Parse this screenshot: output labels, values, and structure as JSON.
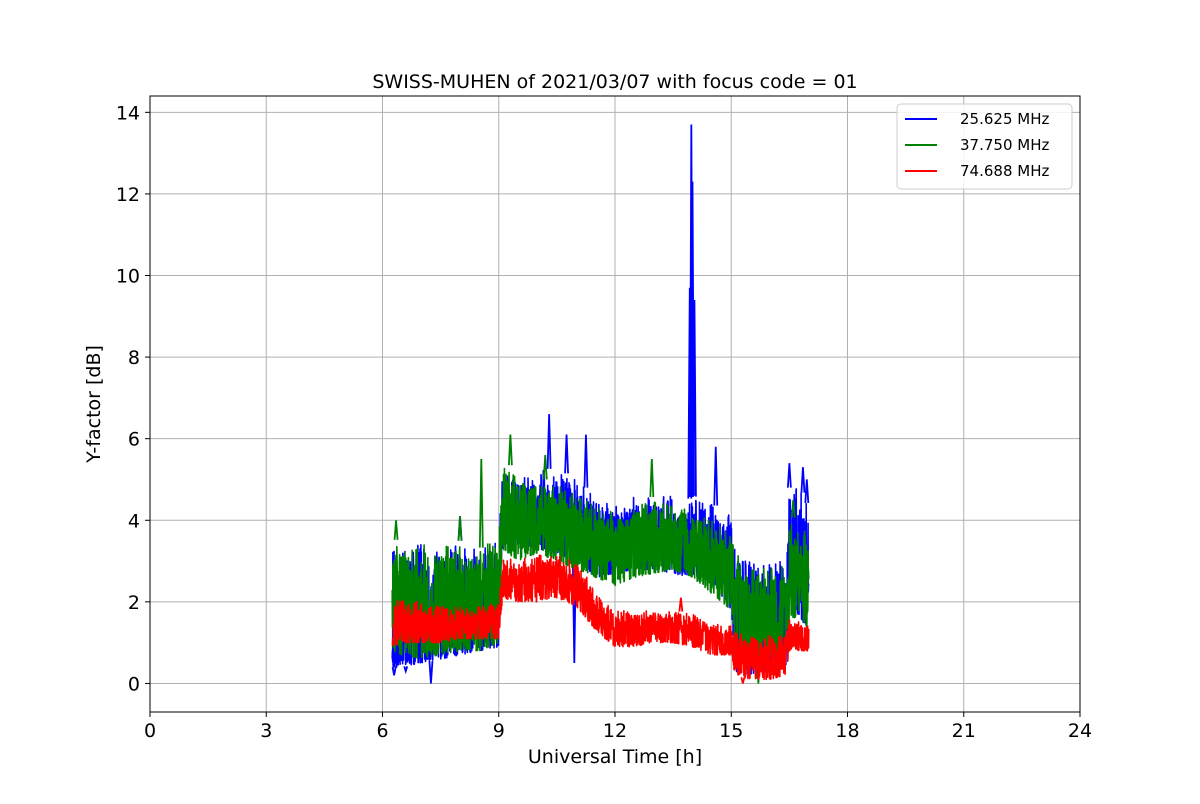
{
  "chart_data": {
    "type": "line",
    "title": "SWISS-MUHEN of 2021/03/07 with focus code = 01",
    "xlabel": "Universal Time [h]",
    "ylabel": "Y-factor [dB]",
    "xlim": [
      0,
      24
    ],
    "ylim": [
      -0.7,
      14.4
    ],
    "xticks": [
      0,
      3,
      6,
      9,
      12,
      15,
      18,
      21,
      24
    ],
    "yticks": [
      0,
      2,
      4,
      6,
      8,
      10,
      12,
      14
    ],
    "grid": true,
    "legend_position": "top-right",
    "series": [
      {
        "name": "25.625 MHz",
        "color": "#0000ff",
        "style": "noisy band",
        "band": {
          "x": [
            6.25,
            6.5,
            7.0,
            7.5,
            8.0,
            8.5,
            9.0,
            9.1,
            9.5,
            10.0,
            10.5,
            11.0,
            11.5,
            12.0,
            12.5,
            13.0,
            13.5,
            13.9,
            14.0,
            14.5,
            15.0,
            15.1,
            15.5,
            16.0,
            16.4,
            16.5,
            16.8,
            17.0
          ],
          "low": [
            0.4,
            0.4,
            0.5,
            0.6,
            0.7,
            0.8,
            0.9,
            3.3,
            3.4,
            3.3,
            3.2,
            3.0,
            2.6,
            2.7,
            2.8,
            2.8,
            2.7,
            2.6,
            2.6,
            2.5,
            1.8,
            0.3,
            0.2,
            0.3,
            0.3,
            1.8,
            1.5,
            1.3
          ],
          "high": [
            3.5,
            3.4,
            3.5,
            3.4,
            3.5,
            3.4,
            3.6,
            5.2,
            5.0,
            5.2,
            5.3,
            5.0,
            4.6,
            4.4,
            4.6,
            4.6,
            4.6,
            4.5,
            4.6,
            4.4,
            4.2,
            3.4,
            3.0,
            3.0,
            3.1,
            4.8,
            4.8,
            4.3
          ]
        },
        "spikes": [
          {
            "x": 6.3,
            "y": 0.2
          },
          {
            "x": 6.6,
            "y": 0.3
          },
          {
            "x": 7.25,
            "y": 0.0
          },
          {
            "x": 8.0,
            "y": 4.1
          },
          {
            "x": 10.3,
            "y": 6.6
          },
          {
            "x": 10.75,
            "y": 6.1
          },
          {
            "x": 10.95,
            "y": 0.5
          },
          {
            "x": 11.25,
            "y": 6.1
          },
          {
            "x": 13.93,
            "y": 9.7
          },
          {
            "x": 13.97,
            "y": 13.7
          },
          {
            "x": 14.0,
            "y": 12.3
          },
          {
            "x": 14.05,
            "y": 9.4
          },
          {
            "x": 14.6,
            "y": 5.8
          },
          {
            "x": 16.5,
            "y": 5.4
          },
          {
            "x": 16.85,
            "y": 5.3
          },
          {
            "x": 16.95,
            "y": 5.0
          }
        ]
      },
      {
        "name": "37.750 MHz",
        "color": "#008000",
        "style": "noisy band",
        "band": {
          "x": [
            6.25,
            6.5,
            7.0,
            7.5,
            8.0,
            8.5,
            9.0,
            9.1,
            9.5,
            10.0,
            10.5,
            11.0,
            11.5,
            12.0,
            12.5,
            13.0,
            13.5,
            14.0,
            14.5,
            15.0,
            15.1,
            15.5,
            16.0,
            16.4,
            16.5,
            16.8,
            17.0
          ],
          "low": [
            0.8,
            0.7,
            0.6,
            0.7,
            0.8,
            0.8,
            1.0,
            3.3,
            3.0,
            3.2,
            3.0,
            2.8,
            2.6,
            2.4,
            2.6,
            2.7,
            2.8,
            2.6,
            2.2,
            1.8,
            0.8,
            0.6,
            0.7,
            0.8,
            1.6,
            1.6,
            1.3
          ],
          "high": [
            3.6,
            3.4,
            3.4,
            3.4,
            3.5,
            3.3,
            3.6,
            5.5,
            5.2,
            5.0,
            5.0,
            4.8,
            4.4,
            4.2,
            4.3,
            4.6,
            4.4,
            4.2,
            4.0,
            3.8,
            3.2,
            3.0,
            3.0,
            2.9,
            4.1,
            4.0,
            3.6
          ]
        },
        "spikes": [
          {
            "x": 6.35,
            "y": 4.0
          },
          {
            "x": 8.0,
            "y": 4.1
          },
          {
            "x": 8.55,
            "y": 5.5
          },
          {
            "x": 9.3,
            "y": 6.1
          },
          {
            "x": 10.2,
            "y": 5.6
          },
          {
            "x": 12.95,
            "y": 5.5
          },
          {
            "x": 15.7,
            "y": 0.0
          },
          {
            "x": 16.6,
            "y": 4.5
          }
        ]
      },
      {
        "name": "74.688 MHz",
        "color": "#ff0000",
        "style": "noisy band",
        "band": {
          "x": [
            6.25,
            6.5,
            7.0,
            7.5,
            8.0,
            8.5,
            9.0,
            9.1,
            9.5,
            10.0,
            10.5,
            11.0,
            11.5,
            12.0,
            12.5,
            13.0,
            13.5,
            14.0,
            14.5,
            15.0,
            15.1,
            15.5,
            16.0,
            16.4,
            16.5,
            16.8,
            17.0
          ],
          "low": [
            0.9,
            1.0,
            1.0,
            1.0,
            1.1,
            1.1,
            1.1,
            2.1,
            2.0,
            2.0,
            2.1,
            1.9,
            1.3,
            0.9,
            0.9,
            1.0,
            1.0,
            0.9,
            0.7,
            0.7,
            0.2,
            0.1,
            0.1,
            0.2,
            0.8,
            0.8,
            0.8
          ],
          "high": [
            2.0,
            2.1,
            2.0,
            1.9,
            1.9,
            1.9,
            2.0,
            3.1,
            3.0,
            3.2,
            3.2,
            3.0,
            2.3,
            1.8,
            1.8,
            1.8,
            1.8,
            1.7,
            1.5,
            1.4,
            1.3,
            1.2,
            1.2,
            1.2,
            1.6,
            1.5,
            1.5
          ]
        },
        "spikes": [
          {
            "x": 15.3,
            "y": 0.0
          },
          {
            "x": 13.7,
            "y": 2.1
          }
        ]
      }
    ]
  }
}
